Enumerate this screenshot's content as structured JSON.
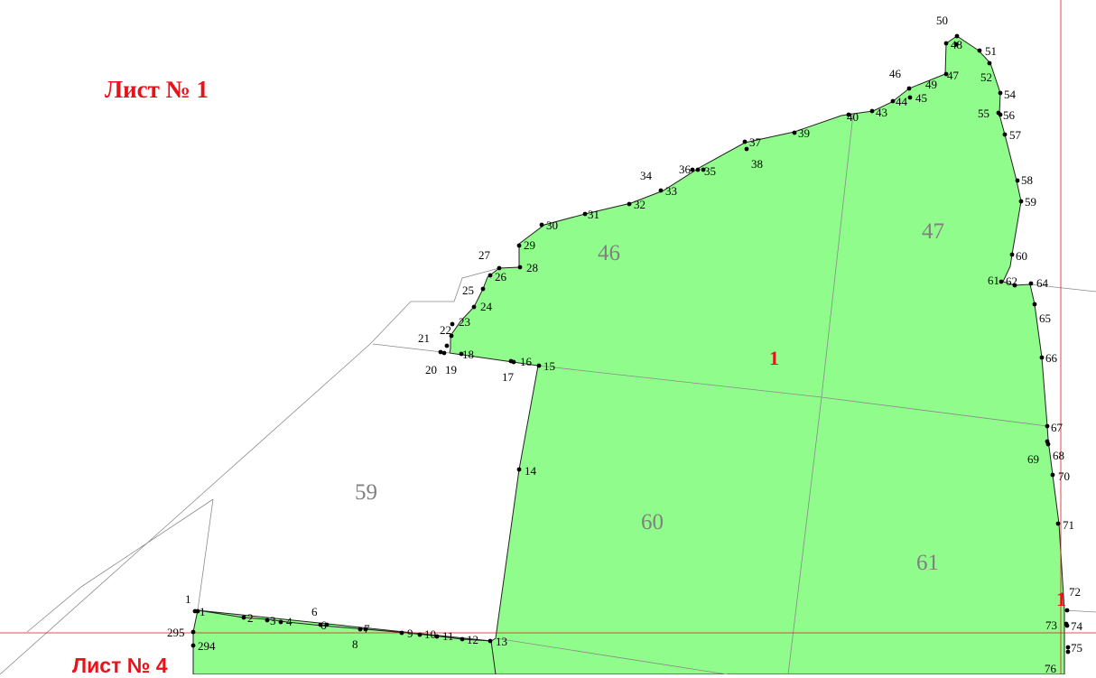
{
  "sheet_labels": {
    "sheet1": "Лист № 1",
    "sheet4": "Лист № 4"
  },
  "zone_labels": [
    "1",
    "1"
  ],
  "plot_labels": [
    "46",
    "47",
    "59",
    "60",
    "61"
  ],
  "point_labels": [
    "1",
    "2",
    "3",
    "4",
    "6",
    "6",
    "7",
    "8",
    "9",
    "10",
    "11",
    "12",
    "13",
    "14",
    "15",
    "16",
    "17",
    "18",
    "19",
    "20",
    "21",
    "22",
    "23",
    "24",
    "25",
    "26",
    "27",
    "28",
    "29",
    "30",
    "31",
    "32",
    "33",
    "34",
    "35",
    "36",
    "37",
    "38",
    "39",
    "40",
    "43",
    "44",
    "45",
    "46",
    "47",
    "48",
    "49",
    "50",
    "51",
    "52",
    "54",
    "55",
    "56",
    "57",
    "58",
    "59",
    "60",
    "61",
    "62",
    "64",
    "65",
    "66",
    "67",
    "68",
    "69",
    "70",
    "71",
    "72",
    "73",
    "74",
    "75",
    "76",
    "294",
    "295",
    "1"
  ],
  "colors": {
    "parcel_fill": "#90fc8c",
    "boundary": "#888888",
    "sheet_line": "#e8131a",
    "label_red": "#e8131a",
    "plot_number": "#808080",
    "point": "#000000"
  }
}
